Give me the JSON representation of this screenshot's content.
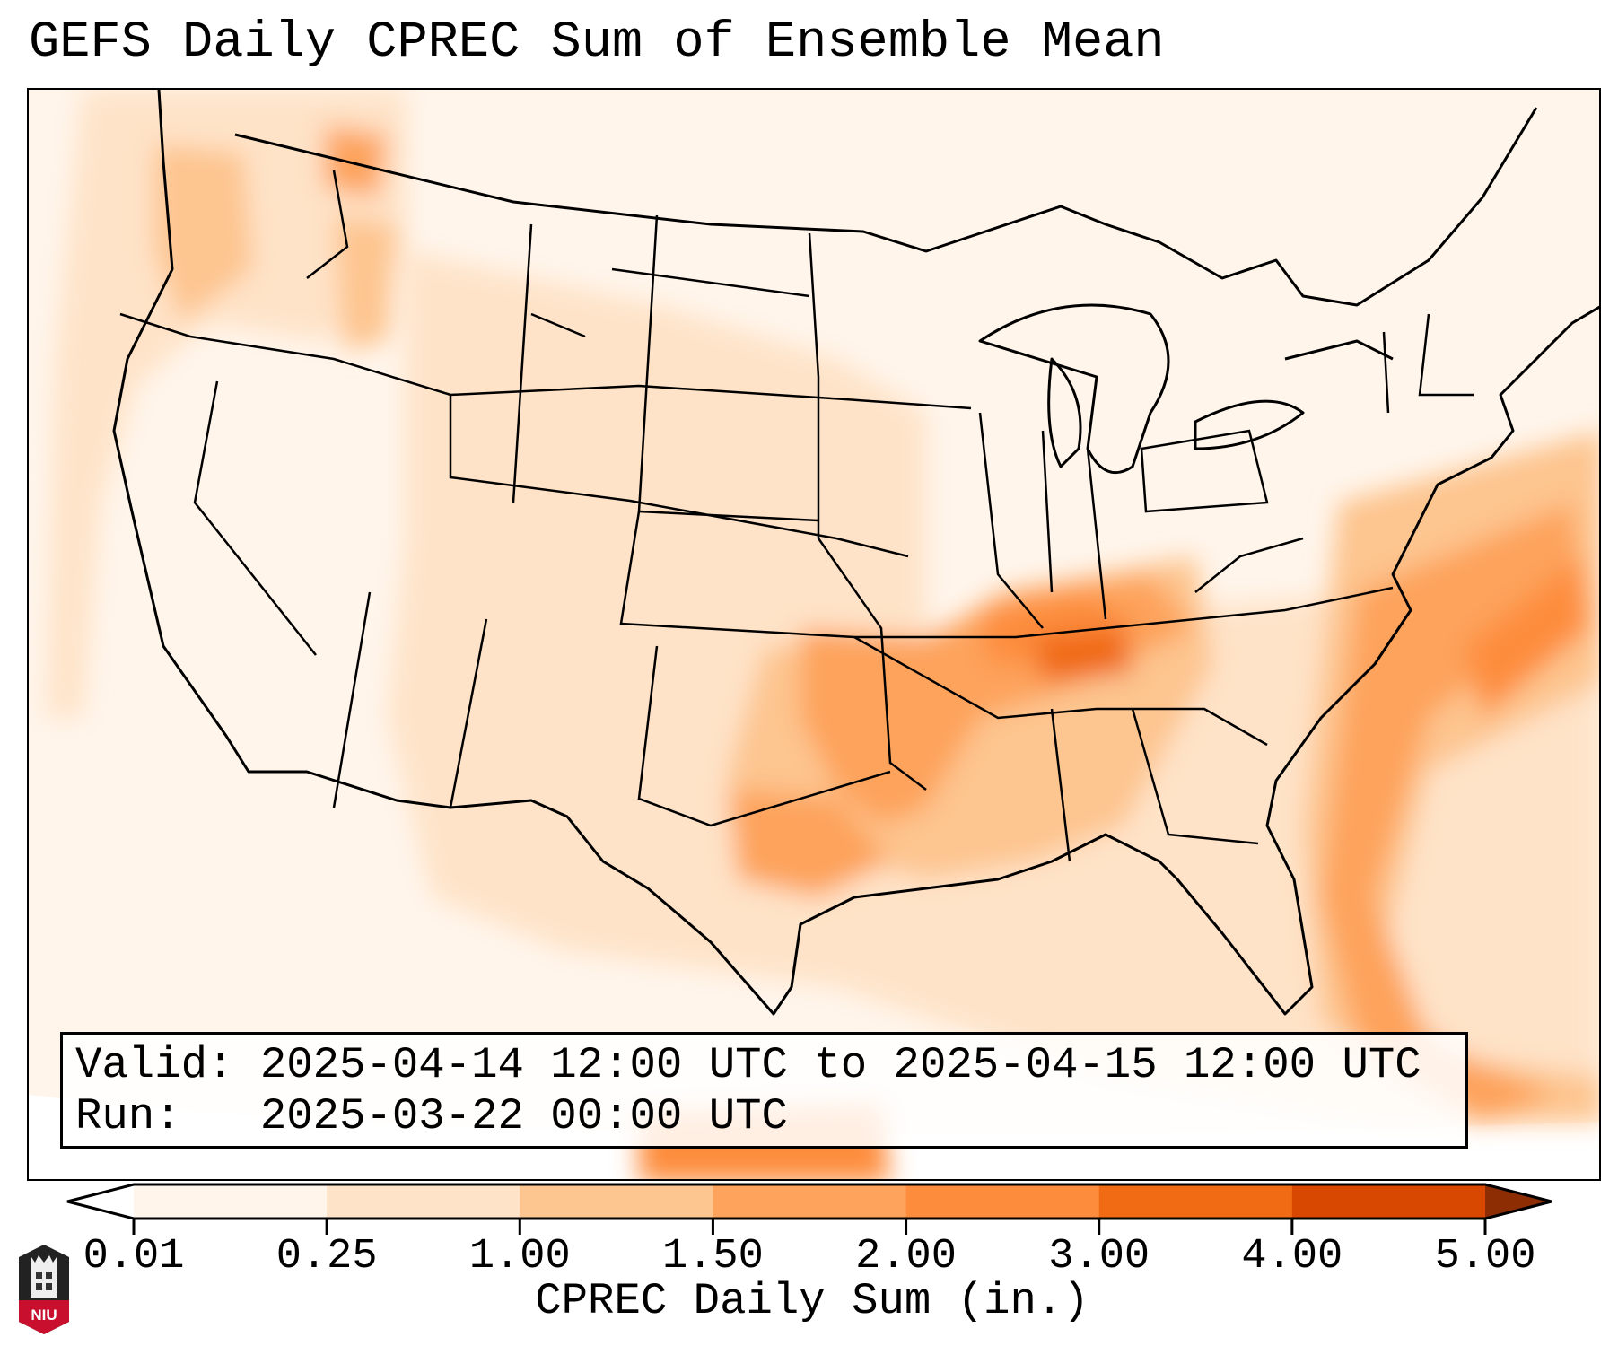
{
  "title": "GEFS Daily CPREC Sum of Ensemble Mean",
  "info": {
    "valid_label": "Valid:",
    "valid_value": "2025-04-14 12:00 UTC to 2025-04-15 12:00 UTC",
    "run_label": "Run:",
    "run_value": "2025-03-22 00:00 UTC"
  },
  "colorbar": {
    "label": "CPREC Daily Sum (in.)",
    "ticks": [
      "0.01",
      "0.25",
      "1.00",
      "1.50",
      "2.00",
      "3.00",
      "4.00",
      "5.00"
    ],
    "colors": [
      "#fff5eb",
      "#fee3c8",
      "#fdc58f",
      "#fda35c",
      "#fd8d3c",
      "#f06b14",
      "#d94801"
    ],
    "under_color": "#ffffff",
    "over_color": "#8c2d04"
  },
  "logo": {
    "text": "NIU"
  }
}
